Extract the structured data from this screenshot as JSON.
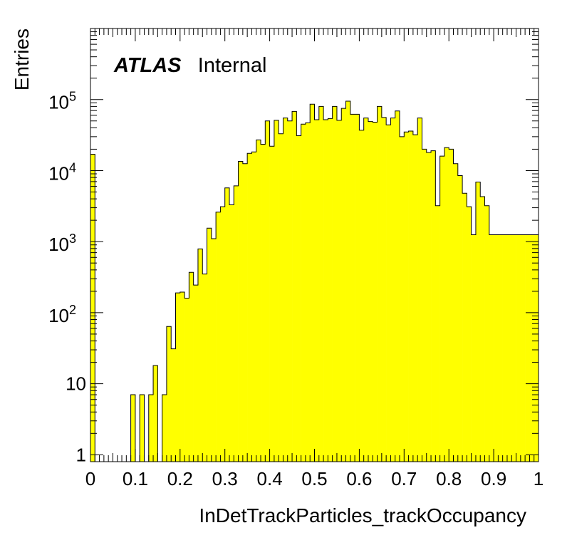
{
  "chart_data": {
    "type": "bar",
    "style": "histogram",
    "fill_color": "#ffff00",
    "edge_color": "#000000",
    "ylabel": "Entries",
    "xlabel": "InDetTrackParticles_trackOccupancy",
    "label_atlas": "ATLAS",
    "label_status": "Internal",
    "xlim": [
      0,
      1
    ],
    "ylim": [
      0.8,
      1000000
    ],
    "y_scale": "log",
    "grid": false,
    "x_ticks": [
      "0",
      "0.1",
      "0.2",
      "0.3",
      "0.4",
      "0.5",
      "0.6",
      "0.7",
      "0.8",
      "0.9",
      "1"
    ],
    "y_ticks": [
      {
        "value": 1,
        "label": "1"
      },
      {
        "value": 10,
        "label": "10"
      },
      {
        "value": 100,
        "label": "10",
        "exp": "2"
      },
      {
        "value": 1000,
        "label": "10",
        "exp": "3"
      },
      {
        "value": 10000,
        "label": "10",
        "exp": "4"
      },
      {
        "value": 100000,
        "label": "10",
        "exp": "5"
      }
    ],
    "bin_width": 0.01,
    "values": [
      17000,
      0,
      0,
      0,
      0,
      0,
      0,
      0,
      0,
      7,
      0,
      7,
      0,
      7,
      18,
      0,
      7,
      64,
      31,
      190,
      195,
      160,
      370,
      245,
      790,
      350,
      1550,
      1100,
      2600,
      3100,
      5700,
      3300,
      6100,
      13500,
      12500,
      17500,
      18300,
      27000,
      23500,
      50000,
      22000,
      51000,
      33000,
      55000,
      50000,
      68000,
      31000,
      45000,
      47000,
      86000,
      52000,
      80000,
      52000,
      54000,
      80000,
      51000,
      75000,
      95000,
      62000,
      62000,
      37000,
      55000,
      49000,
      48000,
      80000,
      56000,
      44000,
      55000,
      69000,
      30000,
      35000,
      36000,
      32000,
      55000,
      20000,
      18000,
      19000,
      3200,
      16000,
      21000,
      20000,
      12500,
      8500,
      4800,
      3100,
      1250,
      6900,
      4300,
      3200,
      1250,
      1250,
      1250,
      1250,
      1250,
      1250,
      1250,
      1250,
      1250,
      1250,
      1250
    ]
  }
}
